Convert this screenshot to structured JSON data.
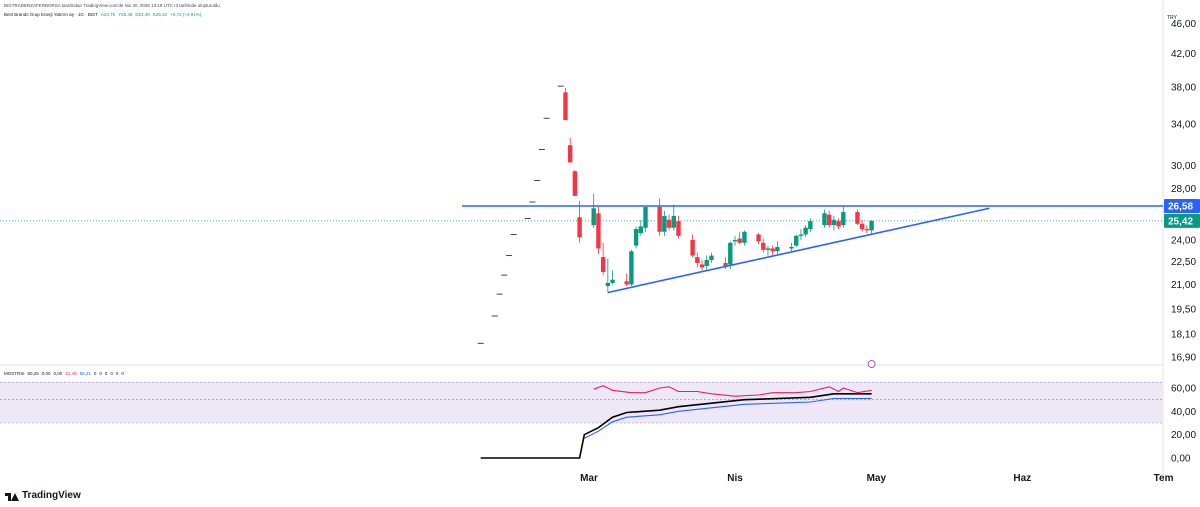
{
  "header": {
    "published_line": "BIGTRADERZAFERBORSA tarafından TradingView.com'de Nis 30, 2026 13:19 UTC+3 tarihinde oluşturuldu"
  },
  "symbol_legend": {
    "name": "Best Brands Grup Enerji Yatırım aş · 1G · BIST",
    "open": "A24,70",
    "high": "Y25,48",
    "low": "D24,46",
    "close": "K25,42",
    "change": "+0,72 (+2,91%)"
  },
  "indicator_legend": {
    "name": "MOSTRSI",
    "values": [
      "50,25",
      "0,00",
      "0,00",
      "51,49",
      "55,21",
      "0",
      "0",
      "0",
      "0",
      "0",
      "0"
    ]
  },
  "currency": "TRY",
  "logo_text": "TradingView",
  "colors": {
    "up": "#089981",
    "down": "#f23645",
    "trendline": "#2962ff",
    "rsi_line": "#e91e63",
    "most_line": "#000000",
    "signal_line": "#2962ff",
    "band_fill": "#ede7f6"
  },
  "chart_data": [
    {
      "type": "candlestick",
      "price_scale": "log",
      "y_ticks": [
        "46,00",
        "42,00",
        "38,00",
        "34,00",
        "30,00",
        "28,00",
        "24,00",
        "22,50",
        "21,00",
        "19,50",
        "18,10",
        "16,90"
      ],
      "x_ticks": [
        "Mar",
        "Nis",
        "May",
        "Haz",
        "Tem"
      ],
      "price_tags": [
        {
          "label": "26,58",
          "value": 26.58,
          "color": "#2962ff"
        },
        {
          "label": "25,42",
          "value": 25.42,
          "color": "#089981"
        }
      ],
      "horizontal_level": 26.58,
      "last_price": 25.42,
      "pre_listing_dashes": [
        {
          "date": "2026-02-06",
          "value": 17.6
        },
        {
          "date": "2026-02-09",
          "value": 19.1
        },
        {
          "date": "2026-02-10",
          "value": 20.4
        },
        {
          "date": "2026-02-11",
          "value": 21.6
        },
        {
          "date": "2026-02-12",
          "value": 22.9
        },
        {
          "date": "2026-02-13",
          "value": 24.4
        },
        {
          "date": "2026-02-16",
          "value": 25.6
        },
        {
          "date": "2026-02-17",
          "value": 26.9
        },
        {
          "date": "2026-02-18",
          "value": 28.7
        },
        {
          "date": "2026-02-19",
          "value": 31.5
        },
        {
          "date": "2026-02-20",
          "value": 34.6
        },
        {
          "date": "2026-02-23",
          "value": 38.1
        }
      ],
      "candles": [
        {
          "date": "2026-02-24",
          "open": 37.4,
          "high": 37.9,
          "low": 34.4,
          "close": 34.4
        },
        {
          "date": "2026-02-25",
          "open": 31.9,
          "high": 32.6,
          "low": 30.3,
          "close": 30.3
        },
        {
          "date": "2026-02-26",
          "open": 29.5,
          "high": 29.6,
          "low": 27.4,
          "close": 27.4
        },
        {
          "date": "2026-02-27",
          "open": 25.7,
          "high": 27.0,
          "low": 23.8,
          "close": 24.2
        },
        {
          "date": "2026-03-02",
          "open": 25.1,
          "high": 27.6,
          "low": 24.9,
          "close": 26.4
        },
        {
          "date": "2026-03-03",
          "open": 26.0,
          "high": 26.5,
          "low": 23.0,
          "close": 23.4
        },
        {
          "date": "2026-03-04",
          "open": 22.8,
          "high": 23.8,
          "low": 21.6,
          "close": 21.8
        },
        {
          "date": "2026-03-05",
          "open": 20.9,
          "high": 22.7,
          "low": 20.5,
          "close": 21.1
        },
        {
          "date": "2026-03-06",
          "open": 21.1,
          "high": 21.9,
          "low": 21.0,
          "close": 21.3
        },
        {
          "date": "2026-03-09",
          "open": 21.2,
          "high": 21.7,
          "low": 20.9,
          "close": 21.0
        },
        {
          "date": "2026-03-10",
          "open": 21.0,
          "high": 23.3,
          "low": 20.9,
          "close": 23.2
        },
        {
          "date": "2026-03-11",
          "open": 23.6,
          "high": 25.0,
          "low": 23.4,
          "close": 24.8
        },
        {
          "date": "2026-03-12",
          "open": 24.5,
          "high": 25.5,
          "low": 24.3,
          "close": 25.0
        },
        {
          "date": "2026-03-13",
          "open": 24.9,
          "high": 26.5,
          "low": 24.6,
          "close": 26.5
        },
        {
          "date": "2026-03-16",
          "open": 26.5,
          "high": 27.2,
          "low": 24.3,
          "close": 24.6
        },
        {
          "date": "2026-03-17",
          "open": 24.6,
          "high": 26.2,
          "low": 24.3,
          "close": 25.8
        },
        {
          "date": "2026-03-18",
          "open": 25.5,
          "high": 25.9,
          "low": 24.7,
          "close": 24.9
        },
        {
          "date": "2026-03-19",
          "open": 24.9,
          "high": 26.7,
          "low": 24.7,
          "close": 25.8
        },
        {
          "date": "2026-03-20",
          "open": 25.4,
          "high": 25.8,
          "low": 24.1,
          "close": 24.3
        },
        {
          "date": "2026-03-23",
          "open": 24.0,
          "high": 24.4,
          "low": 22.8,
          "close": 22.9
        },
        {
          "date": "2026-03-24",
          "open": 22.8,
          "high": 23.1,
          "low": 22.1,
          "close": 22.4
        },
        {
          "date": "2026-03-25",
          "open": 22.3,
          "high": 22.6,
          "low": 21.9,
          "close": 22.1
        },
        {
          "date": "2026-03-26",
          "open": 22.2,
          "high": 22.9,
          "low": 21.9,
          "close": 22.6
        },
        {
          "date": "2026-03-27",
          "open": 22.6,
          "high": 23.1,
          "low": 22.4,
          "close": 22.9
        },
        {
          "date": "2026-03-30",
          "open": 22.4,
          "high": 22.8,
          "low": 22.0,
          "close": 22.2
        },
        {
          "date": "2026-03-31",
          "open": 22.3,
          "high": 23.9,
          "low": 22.0,
          "close": 23.8
        },
        {
          "date": "2026-04-01",
          "open": 23.9,
          "high": 24.3,
          "low": 23.6,
          "close": 24.0
        },
        {
          "date": "2026-04-02",
          "open": 24.1,
          "high": 24.6,
          "low": 23.7,
          "close": 23.8
        },
        {
          "date": "2026-04-03",
          "open": 23.8,
          "high": 24.7,
          "low": 23.6,
          "close": 24.6
        },
        {
          "date": "2026-04-06",
          "open": 24.4,
          "high": 24.5,
          "low": 23.7,
          "close": 23.9
        },
        {
          "date": "2026-04-07",
          "open": 23.8,
          "high": 24.1,
          "low": 23.1,
          "close": 23.3
        },
        {
          "date": "2026-04-08",
          "open": 23.3,
          "high": 23.6,
          "low": 22.9,
          "close": 23.4
        },
        {
          "date": "2026-04-09",
          "open": 23.4,
          "high": 23.6,
          "low": 22.9,
          "close": 23.2
        },
        {
          "date": "2026-04-10",
          "open": 23.2,
          "high": 23.9,
          "low": 23.0,
          "close": 23.5
        },
        {
          "date": "2026-04-13",
          "open": 23.4,
          "high": 23.8,
          "low": 23.2,
          "close": 23.5
        },
        {
          "date": "2026-04-14",
          "open": 23.6,
          "high": 24.4,
          "low": 23.5,
          "close": 24.3
        },
        {
          "date": "2026-04-15",
          "open": 24.3,
          "high": 24.8,
          "low": 24.0,
          "close": 24.4
        },
        {
          "date": "2026-04-16",
          "open": 24.4,
          "high": 25.1,
          "low": 24.2,
          "close": 24.9
        },
        {
          "date": "2026-04-17",
          "open": 24.8,
          "high": 25.6,
          "low": 24.6,
          "close": 25.4
        },
        {
          "date": "2026-04-20",
          "open": 25.1,
          "high": 26.3,
          "low": 24.9,
          "close": 26.0
        },
        {
          "date": "2026-04-21",
          "open": 25.9,
          "high": 26.2,
          "low": 24.9,
          "close": 25.1
        },
        {
          "date": "2026-04-22",
          "open": 25.1,
          "high": 25.8,
          "low": 24.7,
          "close": 25.5
        },
        {
          "date": "2026-04-23",
          "open": 25.4,
          "high": 25.6,
          "low": 24.8,
          "close": 25.0
        },
        {
          "date": "2026-04-24",
          "open": 25.1,
          "high": 26.6,
          "low": 24.9,
          "close": 26.1
        },
        {
          "date": "2026-04-27",
          "open": 26.1,
          "high": 26.3,
          "low": 25.1,
          "close": 25.2
        },
        {
          "date": "2026-04-28",
          "open": 25.2,
          "high": 25.5,
          "low": 24.6,
          "close": 24.8
        },
        {
          "date": "2026-04-29",
          "open": 24.8,
          "high": 25.1,
          "low": 24.5,
          "close": 24.7
        },
        {
          "date": "2026-04-30",
          "open": 24.7,
          "high": 25.48,
          "low": 24.46,
          "close": 25.42
        }
      ],
      "trendlines": [
        {
          "from": {
            "date": "2026-03-05",
            "value": 20.5
          },
          "to": {
            "date": "2026-05-25",
            "value": 26.4
          },
          "color": "#2962ff"
        }
      ]
    },
    {
      "type": "line",
      "y_ticks": [
        "60,00",
        "40,00",
        "20,00",
        "0,00"
      ],
      "ylim": [
        -5,
        70
      ],
      "band": [
        30,
        65
      ],
      "band_midline": 50,
      "series": [
        {
          "color": "#e91e63",
          "points": [
            {
              "date": "2026-03-02",
              "value": 59
            },
            {
              "date": "2026-03-04",
              "value": 62
            },
            {
              "date": "2026-03-06",
              "value": 58
            },
            {
              "date": "2026-03-10",
              "value": 56
            },
            {
              "date": "2026-03-13",
              "value": 56
            },
            {
              "date": "2026-03-16",
              "value": 60
            },
            {
              "date": "2026-03-18",
              "value": 61
            },
            {
              "date": "2026-03-20",
              "value": 57
            },
            {
              "date": "2026-03-24",
              "value": 57
            },
            {
              "date": "2026-03-27",
              "value": 55
            },
            {
              "date": "2026-04-01",
              "value": 53
            },
            {
              "date": "2026-04-06",
              "value": 54
            },
            {
              "date": "2026-04-09",
              "value": 56
            },
            {
              "date": "2026-04-14",
              "value": 56
            },
            {
              "date": "2026-04-17",
              "value": 57
            },
            {
              "date": "2026-04-21",
              "value": 61
            },
            {
              "date": "2026-04-23",
              "value": 57
            },
            {
              "date": "2026-04-24",
              "value": 60
            },
            {
              "date": "2026-04-27",
              "value": 56
            },
            {
              "date": "2026-04-30",
              "value": 58
            }
          ]
        },
        {
          "color": "#000000",
          "points": [
            {
              "date": "2026-02-06",
              "value": 0
            },
            {
              "date": "2026-02-27",
              "value": 0
            },
            {
              "date": "2026-02-28",
              "value": 20
            },
            {
              "date": "2026-03-03",
              "value": 26
            },
            {
              "date": "2026-03-06",
              "value": 35
            },
            {
              "date": "2026-03-09",
              "value": 39
            },
            {
              "date": "2026-03-16",
              "value": 41
            },
            {
              "date": "2026-03-20",
              "value": 44
            },
            {
              "date": "2026-03-27",
              "value": 47
            },
            {
              "date": "2026-04-03",
              "value": 50
            },
            {
              "date": "2026-04-10",
              "value": 51
            },
            {
              "date": "2026-04-17",
              "value": 52
            },
            {
              "date": "2026-04-22",
              "value": 55
            },
            {
              "date": "2026-04-30",
              "value": 55
            }
          ]
        },
        {
          "color": "#2962ff",
          "points": [
            {
              "date": "2026-02-28",
              "value": 17
            },
            {
              "date": "2026-03-03",
              "value": 23
            },
            {
              "date": "2026-03-06",
              "value": 31
            },
            {
              "date": "2026-03-09",
              "value": 35
            },
            {
              "date": "2026-03-16",
              "value": 37
            },
            {
              "date": "2026-03-20",
              "value": 40
            },
            {
              "date": "2026-03-27",
              "value": 43
            },
            {
              "date": "2026-04-03",
              "value": 46
            },
            {
              "date": "2026-04-10",
              "value": 47
            },
            {
              "date": "2026-04-17",
              "value": 48
            },
            {
              "date": "2026-04-22",
              "value": 51
            },
            {
              "date": "2026-04-30",
              "value": 51
            }
          ]
        }
      ]
    }
  ]
}
